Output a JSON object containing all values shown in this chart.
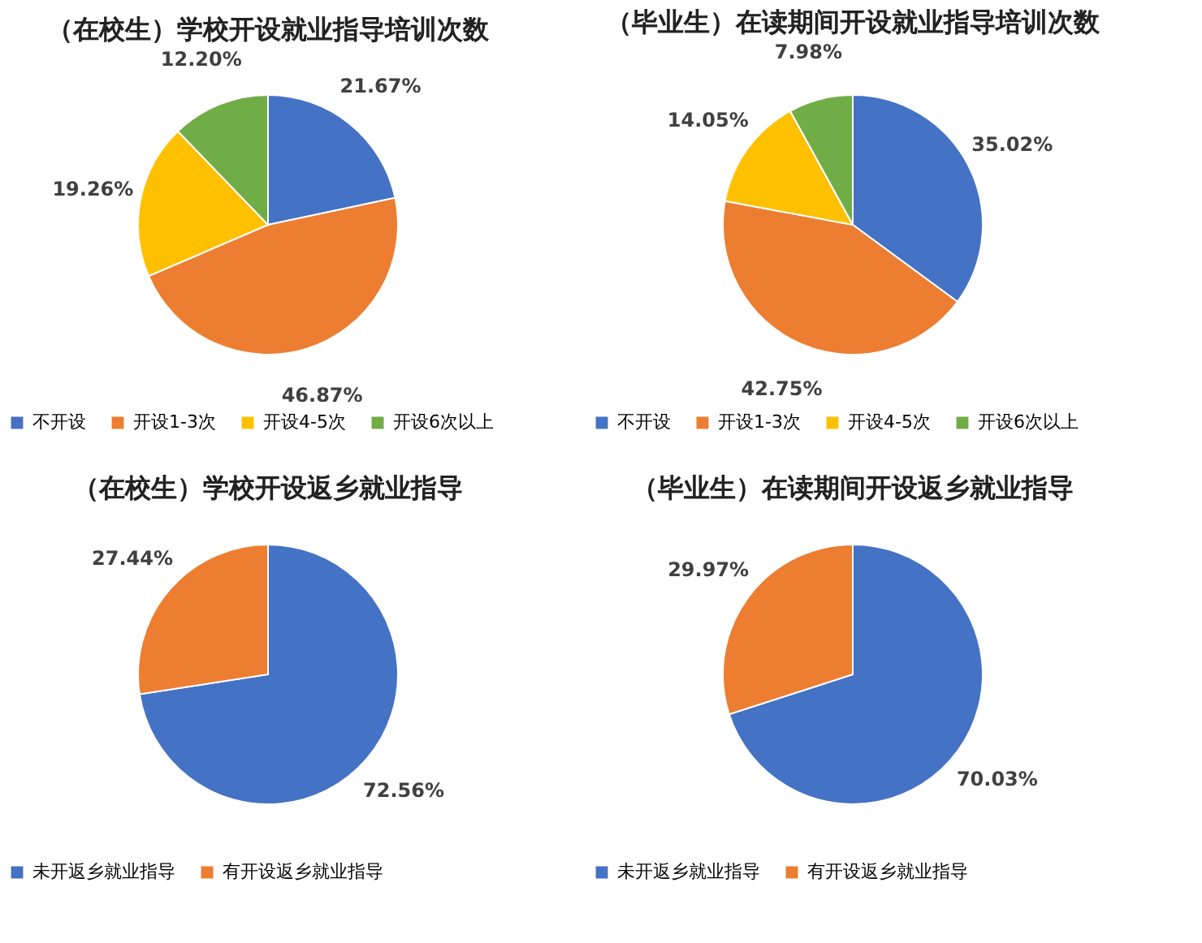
{
  "chart_data": [
    {
      "type": "pie",
      "title": "（在校生）学校开设就业指导培训次数",
      "categories": [
        "不开设",
        "开设1-3次",
        "开设4-5次",
        "开设6次以上"
      ],
      "values": [
        21.67,
        46.87,
        19.26,
        12.2
      ],
      "value_labels": [
        "21.67%",
        "46.87%",
        "19.26%",
        "12.20%"
      ],
      "colors": [
        "#4472c4",
        "#ed7d31",
        "#ffc000",
        "#70ad47"
      ],
      "legend": "bottom"
    },
    {
      "type": "pie",
      "title": "（毕业生）在读期间开设就业指导培训次数",
      "categories": [
        "不开设",
        "开设1-3次",
        "开设4-5次",
        "开设6次以上"
      ],
      "values": [
        35.02,
        42.75,
        14.05,
        7.98
      ],
      "value_labels": [
        "35.02%",
        "42.75%",
        "14.05%",
        "7.98%"
      ],
      "colors": [
        "#4472c4",
        "#ed7d31",
        "#ffc000",
        "#70ad47"
      ],
      "legend": "bottom"
    },
    {
      "type": "pie",
      "title": "（在校生）学校开设返乡就业指导",
      "categories": [
        "未开返乡就业指导",
        "有开设返乡就业指导"
      ],
      "values": [
        72.56,
        27.44
      ],
      "value_labels": [
        "72.56%",
        "27.44%"
      ],
      "colors": [
        "#4472c4",
        "#ed7d31"
      ],
      "legend": "bottom"
    },
    {
      "type": "pie",
      "title": "（毕业生）在读期间开设返乡就业指导",
      "categories": [
        "未开返乡就业指导",
        "有开设返乡就业指导"
      ],
      "values": [
        70.03,
        29.97
      ],
      "value_labels": [
        "70.03%",
        "29.97%"
      ],
      "colors": [
        "#4472c4",
        "#ed7d31"
      ],
      "legend": "bottom"
    }
  ]
}
